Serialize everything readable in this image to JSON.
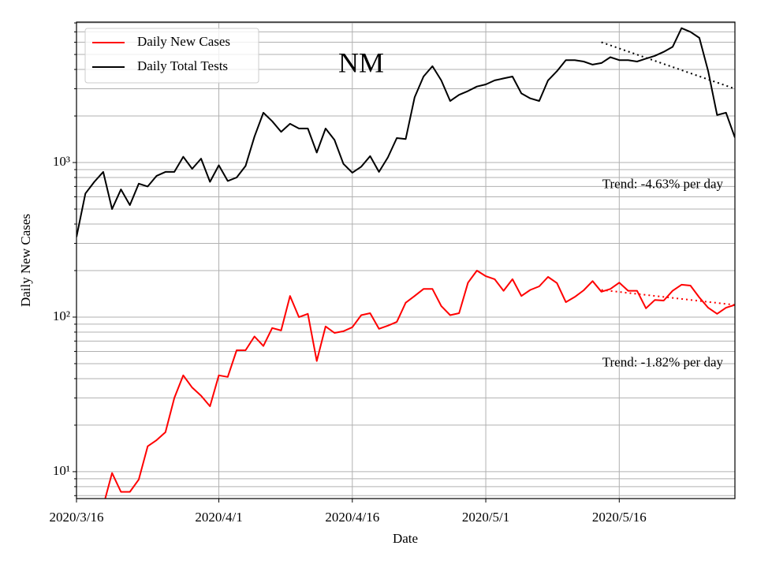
{
  "chart_data": {
    "type": "line",
    "title": "NM",
    "x_label": "Date",
    "y_label": "Daily New Cases",
    "log_y": true,
    "grid": true,
    "legend": "upper left",
    "x": [
      "2020/3/16",
      "2020/3/17",
      "2020/3/18",
      "2020/3/19",
      "2020/3/20",
      "2020/3/21",
      "2020/3/22",
      "2020/3/23",
      "2020/3/24",
      "2020/3/25",
      "2020/3/26",
      "2020/3/27",
      "2020/3/28",
      "2020/3/29",
      "2020/3/30",
      "2020/3/31",
      "2020/4/1",
      "2020/4/2",
      "2020/4/3",
      "2020/4/4",
      "2020/4/5",
      "2020/4/6",
      "2020/4/7",
      "2020/4/8",
      "2020/4/9",
      "2020/4/10",
      "2020/4/11",
      "2020/4/12",
      "2020/4/13",
      "2020/4/14",
      "2020/4/15",
      "2020/4/16",
      "2020/4/17",
      "2020/4/18",
      "2020/4/19",
      "2020/4/20",
      "2020/4/21",
      "2020/4/22",
      "2020/4/23",
      "2020/4/24",
      "2020/4/25",
      "2020/4/26",
      "2020/4/27",
      "2020/4/28",
      "2020/4/29",
      "2020/4/30",
      "2020/5/1",
      "2020/5/2",
      "2020/5/3",
      "2020/5/4",
      "2020/5/5",
      "2020/5/6",
      "2020/5/7",
      "2020/5/8",
      "2020/5/9",
      "2020/5/10",
      "2020/5/11",
      "2020/5/12",
      "2020/5/13",
      "2020/5/14",
      "2020/5/15",
      "2020/5/16",
      "2020/5/17",
      "2020/5/18",
      "2020/5/19",
      "2020/5/20",
      "2020/5/21",
      "2020/5/22",
      "2020/5/23",
      "2020/5/24",
      "2020/5/25",
      "2020/5/26",
      "2020/5/27",
      "2020/5/28",
      "2020/5/29"
    ],
    "series": [
      {
        "name": "Daily New Cases",
        "color": "#ff0000",
        "values": [
          null,
          null,
          null,
          6,
          9.8,
          7.4,
          7.4,
          8.9,
          14.6,
          16,
          18,
          30,
          42,
          35,
          31,
          26.5,
          42,
          41,
          61,
          61,
          75,
          65,
          85,
          82,
          137,
          100,
          105,
          52,
          87,
          79,
          81,
          86,
          103,
          106,
          84,
          88,
          93,
          124,
          137,
          152,
          152,
          118,
          103,
          106,
          167,
          200,
          184,
          176,
          148,
          176,
          137,
          150,
          158,
          182,
          166,
          125,
          135,
          149,
          171,
          146,
          152,
          167,
          148,
          148,
          114,
          129,
          128,
          148,
          162,
          160,
          134,
          115,
          105,
          115,
          120
        ]
      },
      {
        "name": "Daily Total Tests",
        "color": "#000000",
        "values": [
          330,
          630,
          750,
          870,
          500,
          670,
          530,
          730,
          700,
          820,
          870,
          870,
          1090,
          910,
          1060,
          750,
          960,
          760,
          800,
          950,
          1470,
          2100,
          1850,
          1580,
          1780,
          1660,
          1660,
          1160,
          1660,
          1400,
          980,
          860,
          940,
          1100,
          870,
          1080,
          1440,
          1420,
          2640,
          3600,
          4200,
          3400,
          2500,
          2740,
          2900,
          3100,
          3200,
          3400,
          3500,
          3600,
          2800,
          2600,
          2500,
          3400,
          3900,
          4600,
          4600,
          4500,
          4300,
          4400,
          4800,
          4600,
          4600,
          4500,
          4700,
          4900,
          5200,
          5600,
          7400,
          7000,
          6400,
          3900,
          2030,
          2100,
          1450
        ]
      }
    ],
    "trends": [
      {
        "color": "#ff0000",
        "x": [
          "2020/5/14",
          "2020/5/29"
        ],
        "values": [
          150,
          120
        ],
        "label": "Trend: -1.82% per day"
      },
      {
        "color": "#000000",
        "x": [
          "2020/5/14",
          "2020/5/29"
        ],
        "values": [
          6000,
          3000
        ],
        "label": "Trend: -4.63% per day"
      }
    ],
    "xlim": [
      "2020/3/16",
      "2020/5/29"
    ],
    "xticks": [
      "2020/3/16",
      "2020/4/1",
      "2020/4/16",
      "2020/5/1",
      "2020/5/16"
    ],
    "ylim": [
      6.7,
      8100
    ],
    "yticks": [
      {
        "value": 10,
        "label": "10¹"
      },
      {
        "value": 100,
        "label": "10²"
      },
      {
        "value": 1000,
        "label": "10³"
      }
    ],
    "yminor_ticks": [
      7,
      8,
      9,
      20,
      30,
      40,
      50,
      60,
      70,
      80,
      90,
      200,
      300,
      400,
      500,
      600,
      700,
      800,
      900,
      2000,
      3000,
      4000,
      5000,
      6000,
      7000,
      8000
    ]
  }
}
